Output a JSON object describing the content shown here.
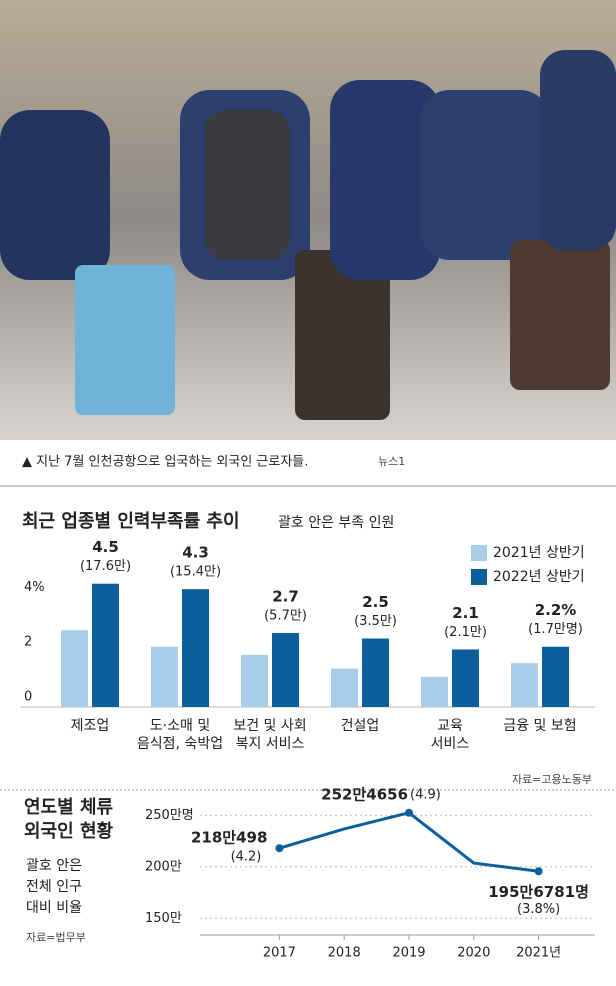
{
  "photo_caption": "▲ 지난 7월 인천공항으로 입국하는 외국인 근로자들.",
  "photo_credit": "뉴스1",
  "chart_data": [
    {
      "type": "bar",
      "title": "최근 업종별 인력부족률 추이",
      "subtitle": "괄호 안은 부족 인원",
      "categories": [
        "제조업",
        "도·소매 및\n음식점, 숙박업",
        "보건 및 사회\n복지 서비스",
        "건설업",
        "교육\n서비스",
        "금융 및 보험"
      ],
      "series": [
        {
          "name": "2021년 상반기",
          "color": "#a9cde9",
          "values": [
            2.8,
            2.2,
            1.9,
            1.4,
            1.1,
            1.6
          ]
        },
        {
          "name": "2022년 상반기",
          "color": "#0d5f9c",
          "values": [
            4.5,
            4.3,
            2.7,
            2.5,
            2.1,
            2.2
          ],
          "value_labels": [
            "4.5",
            "4.3",
            "2.7",
            "2.5",
            "2.1",
            "2.2%"
          ],
          "shortage_labels": [
            "(17.6만)",
            "(15.4만)",
            "(5.7만)",
            "(3.5만)",
            "(2.1만)",
            "(1.7만명)"
          ]
        }
      ],
      "ylim": [
        0,
        5
      ],
      "yticks": [
        0,
        2,
        {
          "value": 4,
          "label": "4%"
        }
      ],
      "legend": "upper-right",
      "source": "자료=고용노동부"
    },
    {
      "type": "line",
      "title": "연도별 체류\n외국인 현황",
      "note": "괄호 안은\n전체 인구\n대비 비율",
      "source": "자료=법무부",
      "categories": [
        "2017",
        "2018",
        "2019",
        "2020",
        "2021년"
      ],
      "series": [
        {
          "color": "#0d5f9c",
          "values": [
            218.0498,
            236.8,
            252.4656,
            203.6,
            195.6781
          ],
          "value_labels": [
            "218만498",
            null,
            "252만4656",
            null,
            "195만6781명"
          ],
          "share_labels": [
            "(4.2)",
            null,
            "(4.9)",
            null,
            "(3.8%)"
          ]
        }
      ],
      "ylim": [
        140,
        260
      ],
      "yticks": [
        {
          "value": 150,
          "label": "150만"
        },
        {
          "value": 200,
          "label": "200만"
        },
        {
          "value": 250,
          "label": "250만명"
        }
      ],
      "grid": true
    }
  ]
}
